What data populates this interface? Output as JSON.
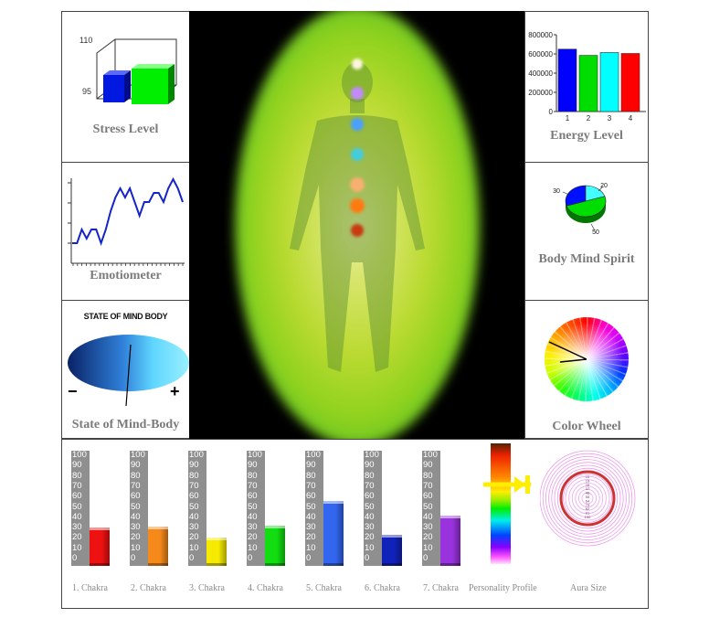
{
  "stress": {
    "title": "Stress Level",
    "y_max_label": "110",
    "y_min_label": "95",
    "colors": [
      "#0018e0",
      "#00ee00"
    ]
  },
  "emotiometer": {
    "title": "Emotiometer",
    "color": "#1424c8",
    "values": [
      2,
      2,
      5,
      3,
      5,
      5,
      2,
      5,
      9,
      12,
      14,
      12,
      14,
      11,
      8,
      11,
      11,
      13,
      13,
      11,
      14,
      16,
      14,
      11
    ]
  },
  "state_of_mind": {
    "title": "State of Mind-Body",
    "header": "STATE OF MIND BODY",
    "minus": "−",
    "plus": "+"
  },
  "energy": {
    "title": "Energy Level",
    "chart_data": {
      "type": "bar",
      "categories": [
        "1",
        "2",
        "3",
        "4"
      ],
      "values": [
        650000,
        585000,
        615000,
        605000
      ],
      "yticks": [
        "0",
        "200000",
        "400000",
        "600000",
        "800000"
      ],
      "ylim": [
        0,
        800000
      ],
      "colors": [
        "#0000ff",
        "#00dd00",
        "#00ffff",
        "#ff0000"
      ]
    }
  },
  "body_mind_spirit": {
    "title": "Body Mind Spirit",
    "chart_data": {
      "type": "pie",
      "values": [
        30,
        20,
        50
      ],
      "labels": [
        "30",
        "20",
        "50"
      ],
      "colors": [
        "#0010ff",
        "#44ffff",
        "#00dd00"
      ]
    }
  },
  "color_wheel": {
    "title": "Color Wheel"
  },
  "chakras": {
    "chart_data": {
      "type": "bar",
      "categories": [
        "1. Chakra",
        "2. Chakra",
        "3. Chakra",
        "4. Chakra",
        "5. Chakra",
        "6. Chakra",
        "7. Chakra"
      ],
      "values": [
        33,
        34,
        25,
        35,
        56,
        27,
        44
      ],
      "ylim": [
        0,
        100
      ],
      "ticks": [
        "100",
        "90",
        "80",
        "70",
        "60",
        "50",
        "40",
        "30",
        "20",
        "10",
        "0"
      ],
      "colors": [
        "#ee1111",
        "#f58a1a",
        "#f5ea00",
        "#11dd11",
        "#3366ee",
        "#1122bb",
        "#9933dd"
      ]
    }
  },
  "personality": {
    "label": "Personality Profile"
  },
  "aura": {
    "label": "Aura Size",
    "rings": [
      "10",
      "19",
      "28",
      "37",
      "46",
      "55",
      "64",
      "73",
      "82",
      "91",
      "100"
    ]
  }
}
